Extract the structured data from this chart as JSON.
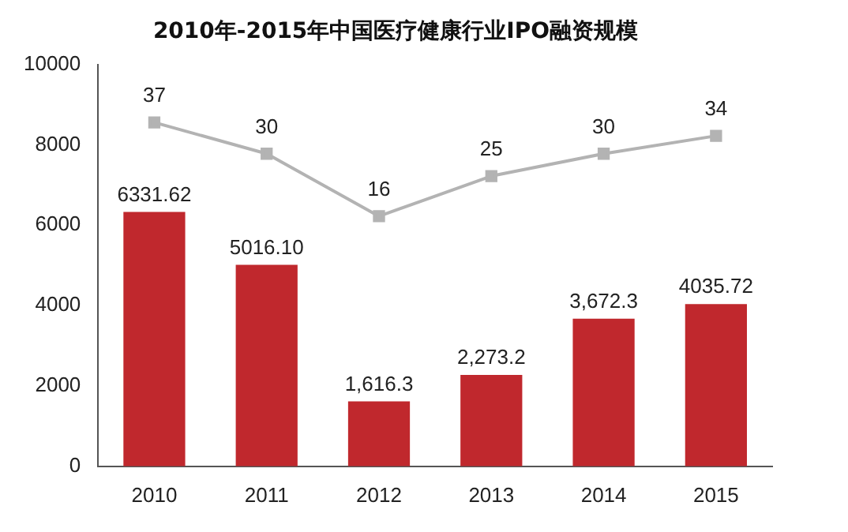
{
  "chart_data": {
    "type": "bar",
    "title": "2010年-2015年中国医疗健康行业IPO融资规模",
    "categories": [
      "2010",
      "2011",
      "2012",
      "2013",
      "2014",
      "2015"
    ],
    "series": [
      {
        "color": "#c0282d",
        "values": [
          6331.62,
          5016.1,
          1616.3,
          2273.2,
          3672.3,
          4035.72
        ],
        "value_labels": [
          "6331.62",
          "5016.10",
          "1,616.3",
          "2,273.2",
          "3,672.3",
          "4035.72"
        ]
      },
      {
        "type": "line",
        "axis": "y2",
        "color": "#b3b3b3",
        "values": [
          37,
          30,
          16,
          25,
          30,
          34
        ],
        "value_labels": [
          "37",
          "30",
          "16",
          "25",
          "30",
          "34"
        ],
        "marker": "square"
      }
    ],
    "ylim": [
      0,
      10000
    ],
    "yticks": [
      0,
      2000,
      4000,
      6000,
      8000,
      10000
    ],
    "y2lim": [
      -40,
      50
    ],
    "grid": false,
    "legend": false
  }
}
